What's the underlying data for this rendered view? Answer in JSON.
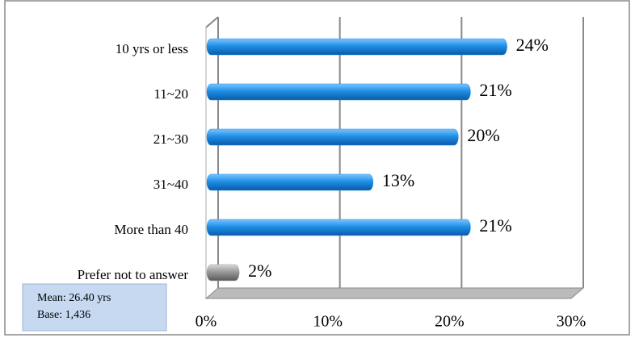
{
  "chart_data": {
    "type": "bar",
    "orientation": "horizontal",
    "categories": [
      "10 yrs or less",
      "11~20",
      "21~30",
      "31~40",
      "More than 40",
      "Prefer not to answer"
    ],
    "values": [
      24,
      21,
      20,
      13,
      21,
      2
    ],
    "value_labels": [
      "24%",
      "21%",
      "20%",
      "13%",
      "21%",
      "2%"
    ],
    "colors": [
      "#1e8fe6",
      "#1e8fe6",
      "#1e8fe6",
      "#1e8fe6",
      "#1e8fe6",
      "#9a9a9a"
    ],
    "xlim": [
      0,
      30
    ],
    "xticks": [
      {
        "value": 0,
        "label": "0%"
      },
      {
        "value": 10,
        "label": "10%"
      },
      {
        "value": 20,
        "label": "20%"
      },
      {
        "value": 30,
        "label": "30%"
      }
    ],
    "grid": true,
    "annotation": [
      "Mean: 26.40 yrs",
      "Base: 1,436"
    ]
  }
}
